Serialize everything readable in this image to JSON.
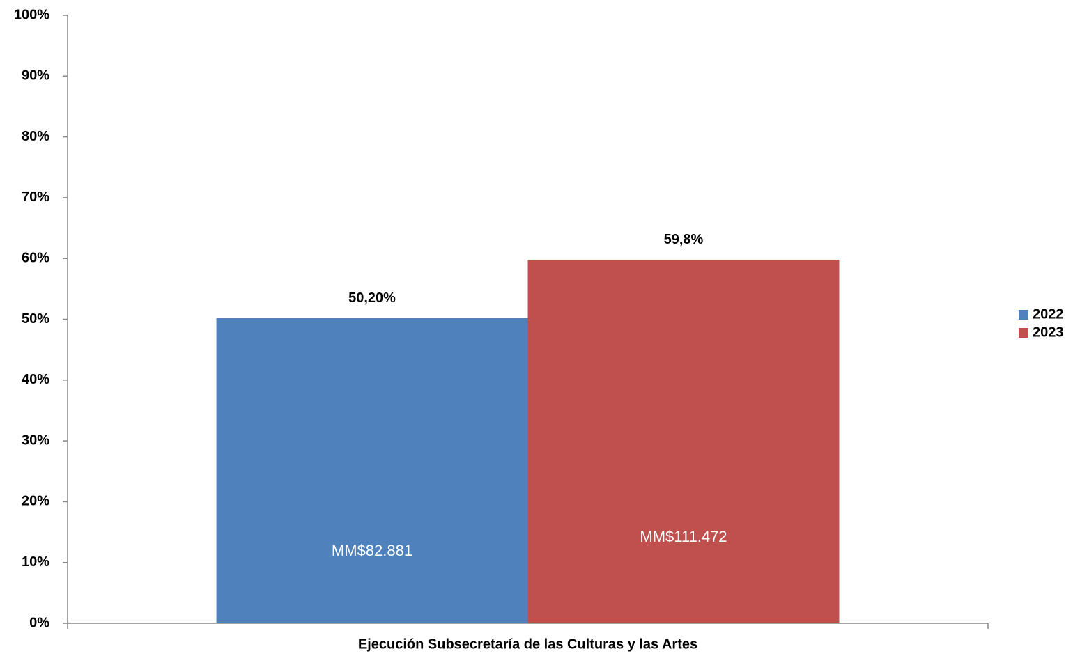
{
  "chart_data": {
    "type": "bar",
    "categories": [
      "Ejecución Subsecretaría de las Culturas y las Artes"
    ],
    "series": [
      {
        "name": "2022",
        "color": "#4f81bd",
        "values": [
          50.2
        ],
        "value_labels": [
          "50,20%"
        ],
        "inner_labels": [
          "MM$82.881"
        ]
      },
      {
        "name": "2023",
        "color": "#c0504d",
        "values": [
          59.8
        ],
        "value_labels": [
          "59,8%"
        ],
        "inner_labels": [
          "MM$111.472"
        ]
      }
    ],
    "ylim": [
      0,
      100
    ],
    "yticks": [
      {
        "value": 0,
        "label": "0%"
      },
      {
        "value": 10,
        "label": "10%"
      },
      {
        "value": 20,
        "label": "20%"
      },
      {
        "value": 30,
        "label": "30%"
      },
      {
        "value": 40,
        "label": "40%"
      },
      {
        "value": 50,
        "label": "50%"
      },
      {
        "value": 60,
        "label": "60%"
      },
      {
        "value": 70,
        "label": "70%"
      },
      {
        "value": 80,
        "label": "80%"
      },
      {
        "value": 90,
        "label": "90%"
      },
      {
        "value": 100,
        "label": "100%"
      }
    ],
    "grid": false,
    "legend": "right"
  }
}
